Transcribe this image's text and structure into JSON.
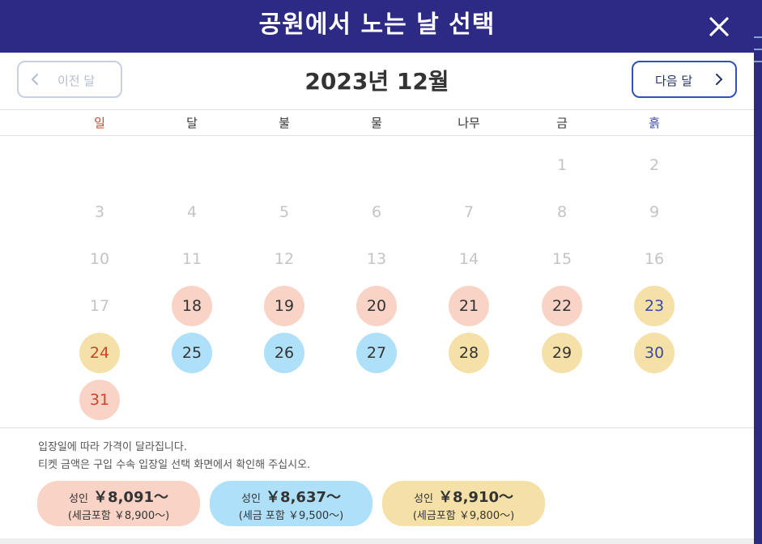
{
  "header": {
    "title": "공원에서 노는 날 선택"
  },
  "nav": {
    "prev_label": "이전 달",
    "next_label": "다음 달",
    "month_title": "2023년 12월"
  },
  "weekdays": [
    "일",
    "달",
    "불",
    "물",
    "나무",
    "금",
    "흙"
  ],
  "days": {
    "d1": "1",
    "d2": "2",
    "d3": "3",
    "d4": "4",
    "d5": "5",
    "d6": "6",
    "d7": "7",
    "d8": "8",
    "d9": "9",
    "d10": "10",
    "d11": "11",
    "d12": "12",
    "d13": "13",
    "d14": "14",
    "d15": "15",
    "d16": "16",
    "d17": "17",
    "d18": "18",
    "d19": "19",
    "d20": "20",
    "d21": "21",
    "d22": "22",
    "d23": "23",
    "d24": "24",
    "d25": "25",
    "d26": "26",
    "d27": "27",
    "d28": "28",
    "d29": "29",
    "d30": "30",
    "d31": "31"
  },
  "footer": {
    "note1": "입장일에 따라 가격이 달라집니다.",
    "note2": "티켓 금액은 구입 수속 입장일 선택 화면에서 확인해 주십시오.",
    "prices": [
      {
        "label": "성인",
        "amount": "￥8,091～",
        "tax": "(세금포함 ￥8,900～)"
      },
      {
        "label": "성인",
        "amount": "￥8,637～",
        "tax": "(세금 포함 ￥9,500～)"
      },
      {
        "label": "성인",
        "amount": "￥8,910～",
        "tax": "(세금포함 ￥9,800～)"
      }
    ]
  },
  "colors": {
    "header_bg": "#2d2a85",
    "price_pink": "#f9d3c5",
    "price_blue": "#aee0fa",
    "price_yellow": "#f5e1a7",
    "sunday_text": "#c9452c",
    "saturday_text": "#3c49a8",
    "next_button_border": "#3350b8"
  },
  "icons": {
    "close": "close-icon",
    "prev": "chevron-left-icon",
    "next": "chevron-right-icon"
  }
}
